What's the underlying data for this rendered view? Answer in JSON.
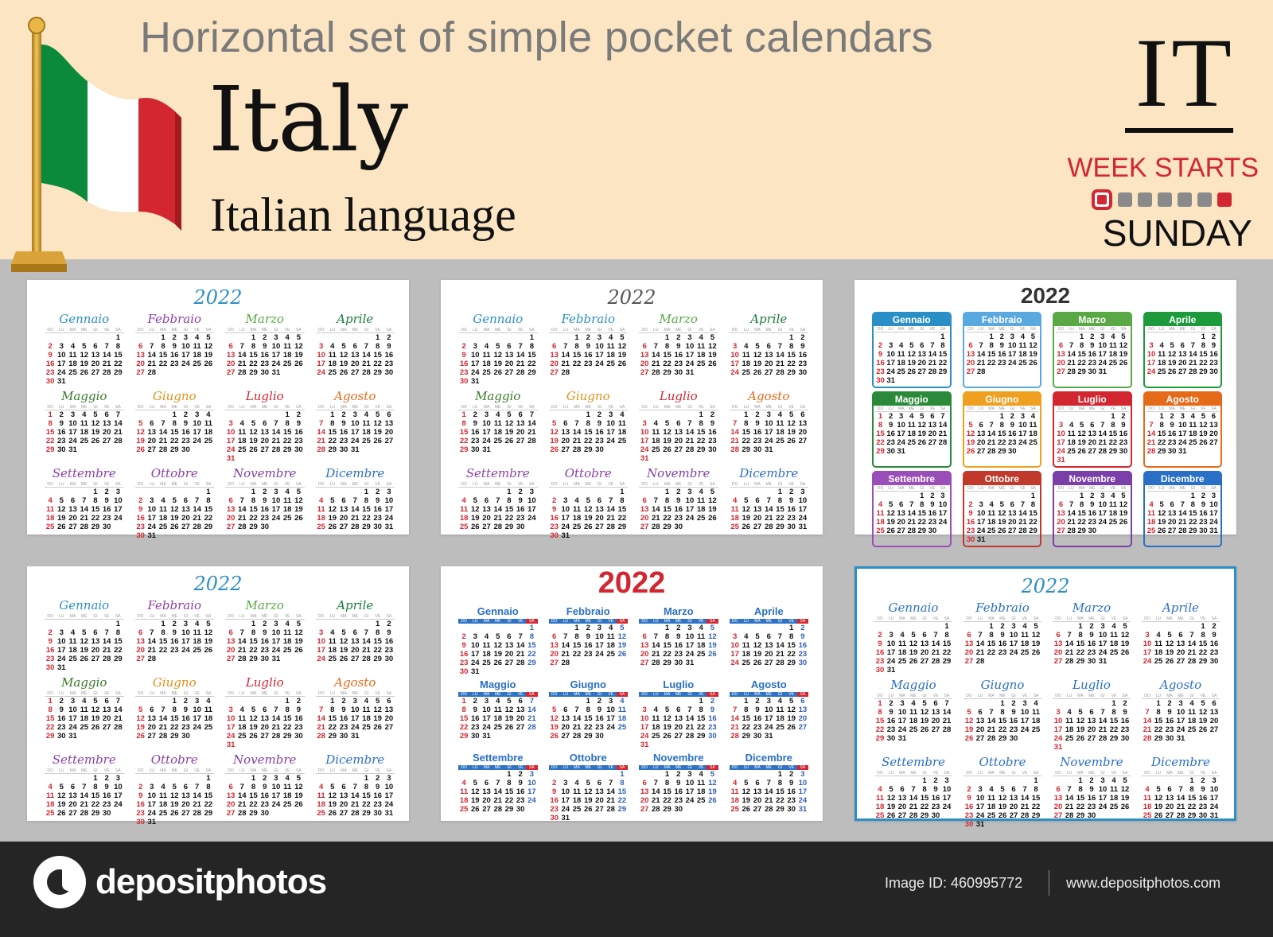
{
  "header": {
    "subtitle": "Horizontal set of simple pocket calendars",
    "country": "Italy",
    "language": "Italian language",
    "code": "IT",
    "week_starts_label": "WEEK STARTS",
    "week_start_day": "SUNDAY",
    "flag_colors": [
      "#009246",
      "#ffffff",
      "#ce2b37"
    ]
  },
  "year": "2022",
  "weekdays": [
    "DO",
    "LU",
    "MA",
    "ME",
    "GI",
    "VE",
    "SA"
  ],
  "months": [
    {
      "name": "Gennaio",
      "days": [
        "",
        "",
        "",
        "",
        "",
        "",
        "1",
        "2",
        "3",
        "4",
        "5",
        "6",
        "7",
        "8",
        "9",
        "10",
        "11",
        "12",
        "13",
        "14",
        "15",
        "16",
        "17",
        "18",
        "19",
        "20",
        "21",
        "22",
        "23",
        "24",
        "25",
        "26",
        "27",
        "28",
        "29",
        "30",
        "31"
      ]
    },
    {
      "name": "Febbraio",
      "days": [
        "",
        "",
        "1",
        "2",
        "3",
        "4",
        "5",
        "6",
        "7",
        "8",
        "9",
        "10",
        "11",
        "12",
        "13",
        "14",
        "15",
        "16",
        "17",
        "18",
        "19",
        "20",
        "21",
        "22",
        "23",
        "24",
        "25",
        "26",
        "27",
        "28"
      ]
    },
    {
      "name": "Marzo",
      "days": [
        "",
        "",
        "1",
        "2",
        "3",
        "4",
        "5",
        "6",
        "7",
        "8",
        "9",
        "10",
        "11",
        "12",
        "13",
        "14",
        "15",
        "16",
        "17",
        "18",
        "19",
        "20",
        "21",
        "22",
        "23",
        "24",
        "25",
        "26",
        "27",
        "28",
        "29",
        "30",
        "31"
      ]
    },
    {
      "name": "Aprile",
      "days": [
        "",
        "",
        "",
        "",
        "",
        "1",
        "2",
        "3",
        "4",
        "5",
        "6",
        "7",
        "8",
        "9",
        "10",
        "11",
        "12",
        "13",
        "14",
        "15",
        "16",
        "17",
        "18",
        "19",
        "20",
        "21",
        "22",
        "23",
        "24",
        "25",
        "26",
        "27",
        "28",
        "29",
        "30"
      ]
    },
    {
      "name": "Maggio",
      "days": [
        "1",
        "2",
        "3",
        "4",
        "5",
        "6",
        "7",
        "8",
        "9",
        "10",
        "11",
        "12",
        "13",
        "14",
        "15",
        "16",
        "17",
        "18",
        "19",
        "20",
        "21",
        "22",
        "23",
        "24",
        "25",
        "26",
        "27",
        "28",
        "29",
        "30",
        "31"
      ]
    },
    {
      "name": "Giugno",
      "days": [
        "",
        "",
        "",
        "1",
        "2",
        "3",
        "4",
        "5",
        "6",
        "7",
        "8",
        "9",
        "10",
        "11",
        "12",
        "13",
        "14",
        "15",
        "16",
        "17",
        "18",
        "19",
        "20",
        "21",
        "22",
        "23",
        "24",
        "25",
        "26",
        "27",
        "28",
        "29",
        "30"
      ]
    },
    {
      "name": "Luglio",
      "days": [
        "",
        "",
        "",
        "",
        "",
        "1",
        "2",
        "3",
        "4",
        "5",
        "6",
        "7",
        "8",
        "9",
        "10",
        "11",
        "12",
        "13",
        "14",
        "15",
        "16",
        "17",
        "18",
        "19",
        "20",
        "21",
        "22",
        "23",
        "24",
        "25",
        "26",
        "27",
        "28",
        "29",
        "30",
        "31"
      ]
    },
    {
      "name": "Agosto",
      "days": [
        "",
        "1",
        "2",
        "3",
        "4",
        "5",
        "6",
        "7",
        "8",
        "9",
        "10",
        "11",
        "12",
        "13",
        "14",
        "15",
        "16",
        "17",
        "18",
        "19",
        "20",
        "21",
        "22",
        "23",
        "24",
        "25",
        "26",
        "27",
        "28",
        "29",
        "30",
        "31"
      ]
    },
    {
      "name": "Settembre",
      "days": [
        "",
        "",
        "",
        "",
        "1",
        "2",
        "3",
        "4",
        "5",
        "6",
        "7",
        "8",
        "9",
        "10",
        "11",
        "12",
        "13",
        "14",
        "15",
        "16",
        "17",
        "18",
        "19",
        "20",
        "21",
        "22",
        "23",
        "24",
        "25",
        "26",
        "27",
        "28",
        "29",
        "30"
      ]
    },
    {
      "name": "Ottobre",
      "days": [
        "",
        "",
        "",
        "",
        "",
        "",
        "1",
        "2",
        "3",
        "4",
        "5",
        "6",
        "7",
        "8",
        "9",
        "10",
        "11",
        "12",
        "13",
        "14",
        "15",
        "16",
        "17",
        "18",
        "19",
        "20",
        "21",
        "22",
        "23",
        "24",
        "25",
        "26",
        "27",
        "28",
        "29",
        "30",
        "31"
      ]
    },
    {
      "name": "Novembre",
      "days": [
        "",
        "",
        "1",
        "2",
        "3",
        "4",
        "5",
        "6",
        "7",
        "8",
        "9",
        "10",
        "11",
        "12",
        "13",
        "14",
        "15",
        "16",
        "17",
        "18",
        "19",
        "20",
        "21",
        "22",
        "23",
        "24",
        "25",
        "26",
        "27",
        "28",
        "29",
        "30"
      ]
    },
    {
      "name": "Dicembre",
      "days": [
        "",
        "",
        "",
        "",
        "1",
        "2",
        "3",
        "4",
        "5",
        "6",
        "7",
        "8",
        "9",
        "10",
        "11",
        "12",
        "13",
        "14",
        "15",
        "16",
        "17",
        "18",
        "19",
        "20",
        "21",
        "22",
        "23",
        "24",
        "25",
        "26",
        "27",
        "28",
        "29",
        "30",
        "31"
      ]
    }
  ],
  "card_styles": [
    {
      "variant": "script",
      "year_color": "#2a8fc6",
      "month_colors": [
        "#2a8fc6",
        "#8a3fa8",
        "#5aa845",
        "#1c7a3c",
        "#3a7a2a",
        "#e0911a",
        "#d22630",
        "#e56a1a",
        "#8a3fa8",
        "#8a3fa8",
        "#7a3fa8",
        "#2a6fc6"
      ]
    },
    {
      "variant": "serif",
      "year_color": "#555555",
      "month_colors": [
        "#2a8fc6",
        "#2a8fc6",
        "#5aa845",
        "#1c7a3c",
        "#3a7a2a",
        "#e0911a",
        "#d22630",
        "#e56a1a",
        "#8a3fa8",
        "#8a3fa8",
        "#7a3fa8",
        "#2a6fc6"
      ]
    },
    {
      "variant": "box",
      "year_color": "#333333",
      "month_colors": [
        "#2a8fc6",
        "#5aa8e0",
        "#5aa845",
        "#1c9a3c",
        "#2a8a3a",
        "#f0a020",
        "#d22630",
        "#e56a1a",
        "#9a4fb8",
        "#c0392b",
        "#7a3fa8",
        "#2a6fc6"
      ]
    },
    {
      "variant": "script",
      "year_color": "#2a8fc6",
      "month_colors": [
        "#2a8fc6",
        "#8a3fa8",
        "#5aa845",
        "#1c7a3c",
        "#3a7a2a",
        "#e0911a",
        "#d22630",
        "#e56a1a",
        "#8a3fa8",
        "#8a3fa8",
        "#7a3fa8",
        "#2a6fc6"
      ]
    },
    {
      "variant": "sans",
      "year_color": "#d22630",
      "month_colors": [
        "#2a6fc6",
        "#2a6fc6",
        "#2a6fc6",
        "#2a6fc6",
        "#2a6fc6",
        "#2a6fc6",
        "#2a6fc6",
        "#2a6fc6",
        "#2a6fc6",
        "#2a6fc6",
        "#2a6fc6",
        "#2a6fc6"
      ]
    },
    {
      "variant": "serif",
      "year_color": "#2a8fc6",
      "month_colors": [
        "#2a6fc6",
        "#2a6fc6",
        "#2a6fc6",
        "#2a6fc6",
        "#2a6fc6",
        "#2a6fc6",
        "#2a6fc6",
        "#2a6fc6",
        "#2a6fc6",
        "#2a6fc6",
        "#2a6fc6",
        "#2a6fc6"
      ]
    }
  ],
  "footer": {
    "brand": "depositphotos",
    "image_id": "Image ID: 460995772",
    "site": "www.depositphotos.com"
  }
}
